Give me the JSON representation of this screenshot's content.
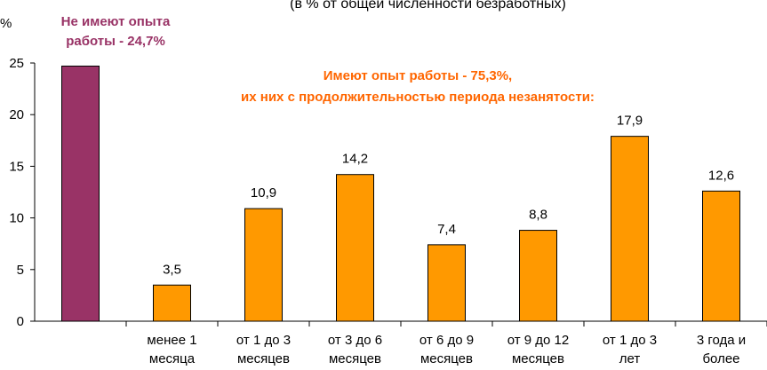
{
  "chart_data": {
    "type": "bar",
    "subtitle": "(в % от общей численности безработных)",
    "ylabel": "%",
    "ylim": [
      0,
      25
    ],
    "yticks": [
      0,
      5,
      10,
      15,
      20,
      25
    ],
    "grid": false,
    "categories": [
      "",
      "менее 1 месяца",
      "от 1 до 3 месяцев",
      "от 3 до 6 месяцев",
      "от 6 до 9 месяцев",
      "от 9 до 12 месяцев",
      "от 1 до 3 лет",
      "3 года и более"
    ],
    "category_lines": [
      [],
      [
        "менее 1",
        "месяца"
      ],
      [
        "от 1 до 3",
        "месяцев"
      ],
      [
        "от 3 до 6",
        "месяцев"
      ],
      [
        "от 6 до 9",
        "месяцев"
      ],
      [
        "от 9 до 12",
        "месяцев"
      ],
      [
        "от 1 до 3",
        "лет"
      ],
      [
        "3 года и",
        "более"
      ]
    ],
    "values": [
      24.7,
      3.5,
      10.9,
      14.2,
      7.4,
      8.8,
      17.9,
      12.6
    ],
    "data_labels": [
      "",
      "3,5",
      "10,9",
      "14,2",
      "7,4",
      "8,8",
      "17,9",
      "12,6"
    ],
    "bar_colors": [
      "#993366",
      "#FF9900",
      "#FF9900",
      "#FF9900",
      "#FF9900",
      "#FF9900",
      "#FF9900",
      "#FF9900"
    ],
    "annotations": [
      {
        "lines": [
          "Не имеют опыта",
          "работы - 24,7%"
        ],
        "color": "#993366"
      },
      {
        "lines": [
          "Имеют опыт работы - 75,3%,",
          "их них с продолжительностью периода незанятости:"
        ],
        "color": "#FF6600"
      }
    ]
  }
}
